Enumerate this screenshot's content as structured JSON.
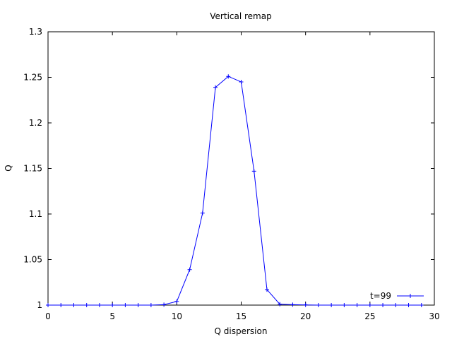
{
  "chart_data": {
    "type": "line",
    "title": "Vertical remap",
    "xlabel": "Q dispersion",
    "ylabel": "Q",
    "xlim": [
      0,
      30
    ],
    "ylim": [
      1,
      1.3
    ],
    "xticks": [
      0,
      5,
      10,
      15,
      20,
      25,
      30
    ],
    "xtick_labels": [
      "0",
      "5",
      "10",
      "15",
      "20",
      "25",
      "30"
    ],
    "yticks": [
      1,
      1.05,
      1.1,
      1.15,
      1.2,
      1.25,
      1.3
    ],
    "ytick_labels": [
      "1",
      "1.05",
      "1.1",
      "1.15",
      "1.2",
      "1.25",
      "1.3"
    ],
    "grid": false,
    "legend_position": "bottom-right",
    "series": [
      {
        "name": "t=99",
        "color": "#0000ff",
        "marker": "plus",
        "x": [
          0,
          1,
          2,
          3,
          4,
          5,
          6,
          7,
          8,
          9,
          10,
          11,
          12,
          13,
          14,
          15,
          16,
          17,
          18,
          19,
          20,
          21,
          22,
          23,
          24,
          25,
          26,
          27,
          28,
          29
        ],
        "y": [
          1,
          1,
          1,
          1,
          1,
          1,
          1,
          1,
          1,
          1.0005,
          1.004,
          1.039,
          1.101,
          1.239,
          1.251,
          1.245,
          1.147,
          1.017,
          1.001,
          1.0005,
          1.0002,
          1,
          1,
          1,
          1,
          1,
          1,
          1,
          1,
          1
        ]
      }
    ]
  }
}
